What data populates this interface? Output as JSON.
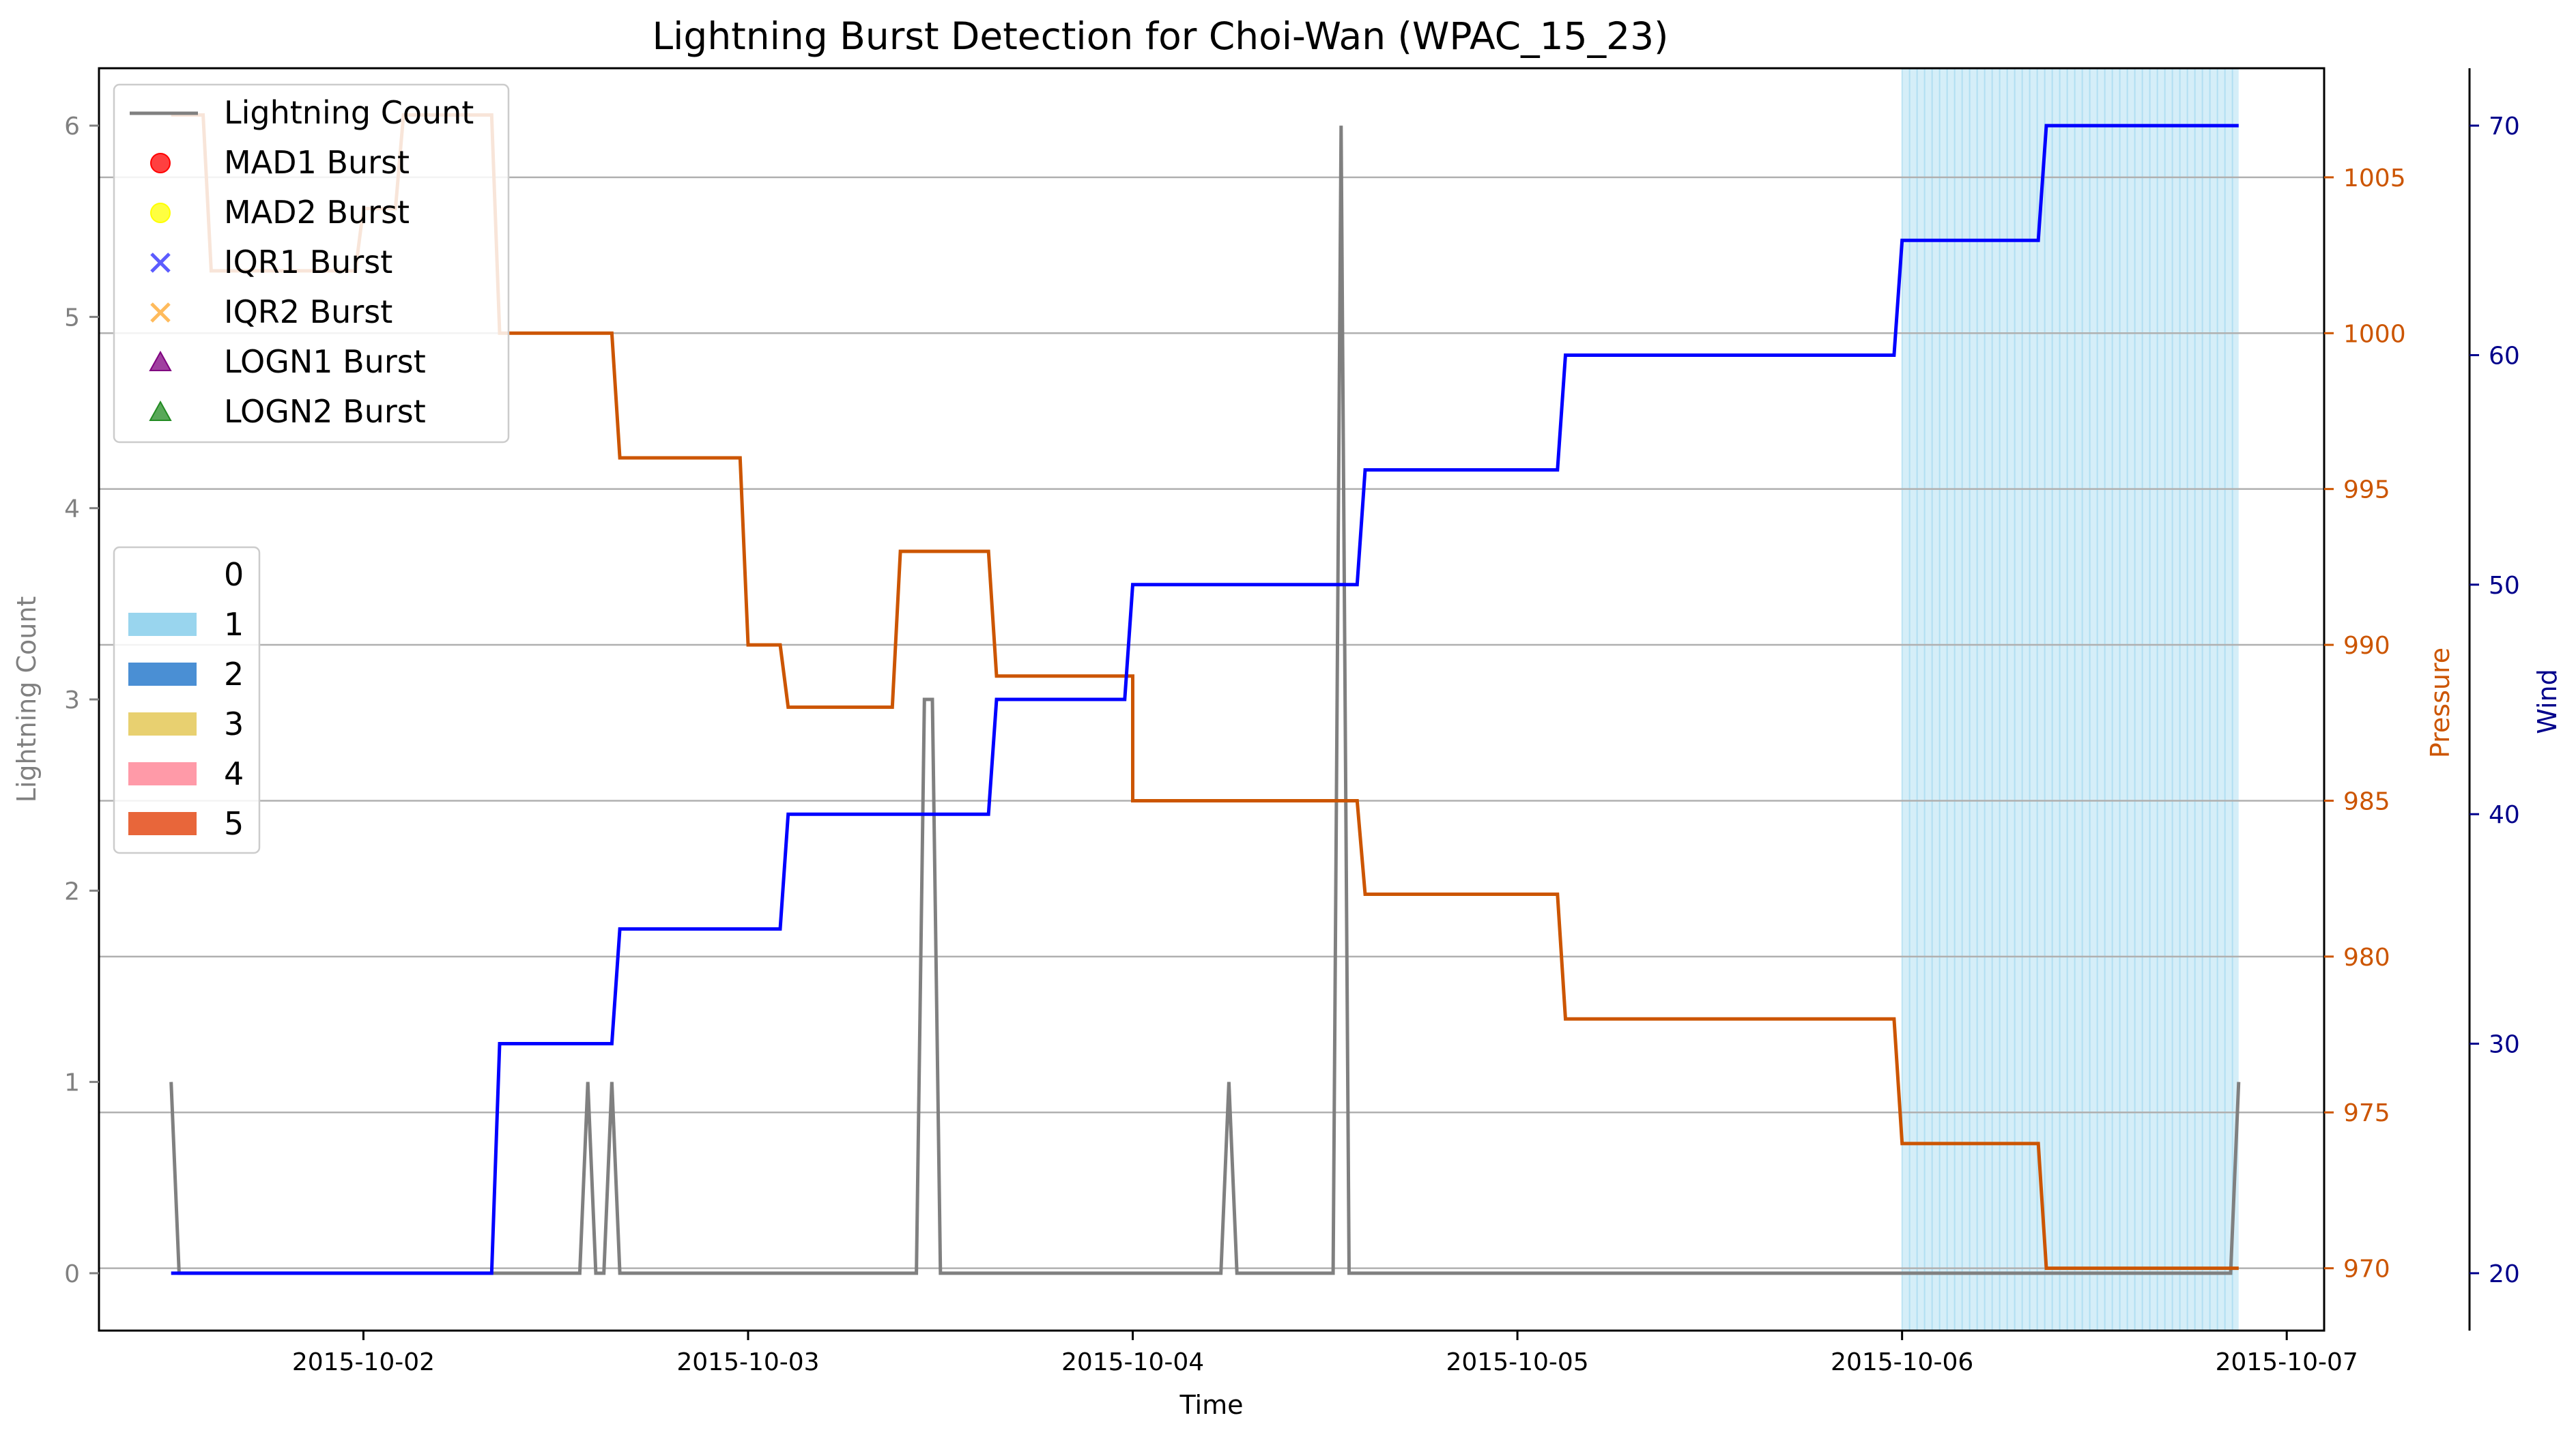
{
  "chart_data": {
    "type": "line",
    "title": "Lightning Burst Detection for Choi-Wan (WPAC_15_23)",
    "xlabel": "Time",
    "x_ticks": [
      "2015-10-02",
      "2015-10-03",
      "2015-10-04",
      "2015-10-05",
      "2015-10-06",
      "2015-10-07"
    ],
    "xlim": [
      "2015-10-01T07:30",
      "2015-10-07T02:20"
    ],
    "axes": {
      "left": {
        "label": "Lightning Count",
        "ylim": [
          -0.3,
          6.3
        ],
        "ticks": [
          "0",
          "1",
          "2",
          "3",
          "4",
          "5",
          "6"
        ],
        "color": "#808080"
      },
      "pressure": {
        "label": "Pressure",
        "ylim": [
          968,
          1008.5
        ],
        "ticks": [
          "970",
          "975",
          "980",
          "985",
          "990",
          "995",
          "1000",
          "1005"
        ],
        "color": "#cc5500"
      },
      "wind": {
        "label": "Wind",
        "ylim": [
          17.5,
          72.5
        ],
        "ticks": [
          "20",
          "30",
          "40",
          "50",
          "60",
          "70"
        ],
        "color": "#00008b"
      }
    },
    "grid": "horizontal-right-axis",
    "series": [
      {
        "name": "Lightning Count",
        "axis": "left",
        "color": "#808080",
        "points": [
          [
            "2015-10-01T12:00",
            1
          ],
          [
            "2015-10-01T12:30",
            0
          ],
          [
            "2015-10-02T13:30",
            0
          ],
          [
            "2015-10-02T14:00",
            1
          ],
          [
            "2015-10-02T14:30",
            0
          ],
          [
            "2015-10-02T15:00",
            0
          ],
          [
            "2015-10-02T15:30",
            1
          ],
          [
            "2015-10-02T16:00",
            0
          ],
          [
            "2015-10-03T10:30",
            0
          ],
          [
            "2015-10-03T11:00",
            3
          ],
          [
            "2015-10-03T11:30",
            3
          ],
          [
            "2015-10-03T12:00",
            0
          ],
          [
            "2015-10-04T05:30",
            0
          ],
          [
            "2015-10-04T06:00",
            1
          ],
          [
            "2015-10-04T06:30",
            0
          ],
          [
            "2015-10-04T12:30",
            0
          ],
          [
            "2015-10-04T13:00",
            6
          ],
          [
            "2015-10-04T13:30",
            0
          ],
          [
            "2015-10-06T20:30",
            0
          ],
          [
            "2015-10-06T21:00",
            1
          ]
        ]
      },
      {
        "name": "Pressure",
        "axis": "pressure",
        "color": "#cc5500",
        "points": [
          [
            "2015-10-01T12:00",
            1007
          ],
          [
            "2015-10-01T14:00",
            1007
          ],
          [
            "2015-10-01T14:30",
            1002
          ],
          [
            "2015-10-01T23:30",
            1002
          ],
          [
            "2015-10-02T00:00",
            1004
          ],
          [
            "2015-10-02T02:00",
            1004
          ],
          [
            "2015-10-02T02:30",
            1007
          ],
          [
            "2015-10-02T08:00",
            1007
          ],
          [
            "2015-10-02T08:30",
            1000
          ],
          [
            "2015-10-02T15:30",
            1000
          ],
          [
            "2015-10-02T16:00",
            996
          ],
          [
            "2015-10-02T23:30",
            996
          ],
          [
            "2015-10-03T00:00",
            990
          ],
          [
            "2015-10-03T02:00",
            990
          ],
          [
            "2015-10-03T02:30",
            988
          ],
          [
            "2015-10-03T09:00",
            988
          ],
          [
            "2015-10-03T09:30",
            993
          ],
          [
            "2015-10-03T15:00",
            993
          ],
          [
            "2015-10-03T15:30",
            989
          ],
          [
            "2015-10-04T00:00",
            989
          ],
          [
            "2015-10-04T00:00",
            985
          ],
          [
            "2015-10-04T14:00",
            985
          ],
          [
            "2015-10-04T14:30",
            982
          ],
          [
            "2015-10-05T02:30",
            982
          ],
          [
            "2015-10-05T03:00",
            978
          ],
          [
            "2015-10-05T23:30",
            978
          ],
          [
            "2015-10-06T00:00",
            974
          ],
          [
            "2015-10-06T08:30",
            974
          ],
          [
            "2015-10-06T09:00",
            970
          ],
          [
            "2015-10-06T21:00",
            970
          ]
        ]
      },
      {
        "name": "Wind",
        "axis": "wind",
        "color": "#0000ff",
        "points": [
          [
            "2015-10-01T12:00",
            20
          ],
          [
            "2015-10-02T08:00",
            20
          ],
          [
            "2015-10-02T08:30",
            30
          ],
          [
            "2015-10-02T15:30",
            30
          ],
          [
            "2015-10-02T16:00",
            35
          ],
          [
            "2015-10-03T02:00",
            35
          ],
          [
            "2015-10-03T02:30",
            40
          ],
          [
            "2015-10-03T15:00",
            40
          ],
          [
            "2015-10-03T15:30",
            45
          ],
          [
            "2015-10-03T23:30",
            45
          ],
          [
            "2015-10-04T00:00",
            50
          ],
          [
            "2015-10-04T14:00",
            50
          ],
          [
            "2015-10-04T14:30",
            55
          ],
          [
            "2015-10-05T02:30",
            55
          ],
          [
            "2015-10-05T03:00",
            60
          ],
          [
            "2015-10-05T23:30",
            60
          ],
          [
            "2015-10-06T00:00",
            65
          ],
          [
            "2015-10-06T08:30",
            65
          ],
          [
            "2015-10-06T09:00",
            70
          ],
          [
            "2015-10-06T21:00",
            70
          ]
        ]
      }
    ],
    "shaded_region": {
      "category": "1",
      "start": "2015-10-06T00:00",
      "end": "2015-10-06T21:00",
      "color": "#87ceeb"
    },
    "legend_markers": {
      "placement": "upper-left",
      "entries": [
        {
          "label": "Lightning Count",
          "marker": "line",
          "color": "#808080"
        },
        {
          "label": "MAD1 Burst",
          "marker": "circle",
          "color": "#ff0000"
        },
        {
          "label": "MAD2 Burst",
          "marker": "circle",
          "color": "#ffff00"
        },
        {
          "label": "IQR1 Burst",
          "marker": "x",
          "color": "#3333ff"
        },
        {
          "label": "IQR2 Burst",
          "marker": "x",
          "color": "#ffaa33"
        },
        {
          "label": "LOGN1 Burst",
          "marker": "triangle",
          "color": "#800080"
        },
        {
          "label": "LOGN2 Burst",
          "marker": "triangle",
          "color": "#228b22"
        }
      ]
    },
    "legend_categories": {
      "placement": "center-left",
      "entries": [
        {
          "label": "0",
          "color": ""
        },
        {
          "label": "1",
          "color": "#87ceeb"
        },
        {
          "label": "2",
          "color": "#4a8fd4"
        },
        {
          "label": "3",
          "color": "#e8d070"
        },
        {
          "label": "4",
          "color": "#ff9aa8"
        },
        {
          "label": "5",
          "color": "#e8663a"
        }
      ]
    }
  }
}
